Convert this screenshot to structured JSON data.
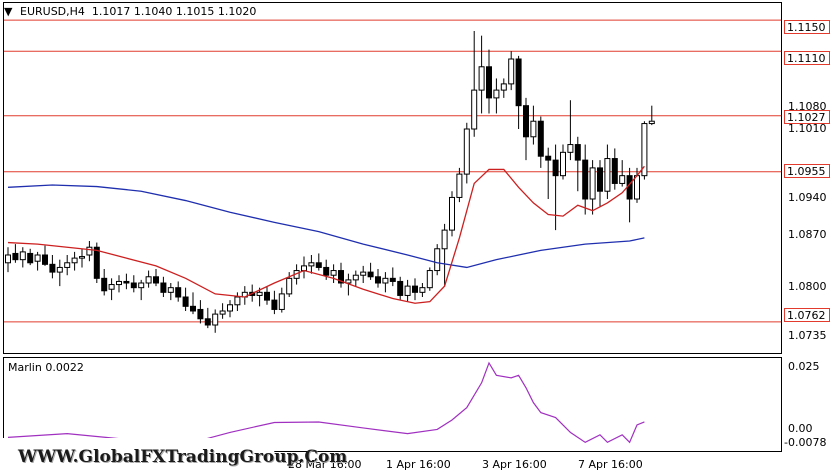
{
  "header": {
    "symbol_line": "EURUSD,H4  1.1017 1.1040 1.1015 1.1020",
    "indicator_line": "Marlin 0.0022"
  },
  "price_axis": [
    "1.1080",
    "1.1010",
    "1.0940",
    "1.0870",
    "1.0800",
    "1.0735"
  ],
  "levels": [
    {
      "value": "1.1150",
      "price": 1.115
    },
    {
      "value": "1.1110",
      "price": 1.111
    },
    {
      "value": "1.1027",
      "price": 1.1027
    },
    {
      "value": "1.0955",
      "price": 1.0955
    },
    {
      "value": "1.0762",
      "price": 1.0762
    }
  ],
  "indicator_axis": [
    "0.025",
    "0.00",
    "-0.0078"
  ],
  "time_axis": [
    "28 Mar 16:00",
    "1 Apr 16:00",
    "3 Apr 16:00",
    "7 Apr 16:00"
  ],
  "watermark": "WWW.GlobalFXTradingGroup.Com",
  "colors": {
    "level_line": "#e23b2e",
    "ma_blue": "#1f2fae",
    "envelope_red": "#cc2020",
    "marlin": "#a030c0",
    "bull": "#ffffff",
    "bear": "#000000"
  },
  "chart_data": {
    "type": "candlestick",
    "symbol": "EURUSD",
    "timeframe": "H4",
    "ohlc_last": {
      "open": 1.1017,
      "high": 1.104,
      "low": 1.1015,
      "close": 1.102
    },
    "ylim": [
      1.0722,
      1.1172
    ],
    "candles": [
      [
        1.0838,
        1.0858,
        1.0826,
        1.0848
      ],
      [
        1.085,
        1.0862,
        1.0838,
        1.0842
      ],
      [
        1.0842,
        1.0858,
        1.0832,
        1.0852
      ],
      [
        1.085,
        1.0856,
        1.0835,
        1.0838
      ],
      [
        1.084,
        1.0852,
        1.0828,
        1.0848
      ],
      [
        1.0848,
        1.086,
        1.0834,
        1.0836
      ],
      [
        1.0836,
        1.0848,
        1.0818,
        1.0826
      ],
      [
        1.0826,
        1.0842,
        1.0808,
        1.0832
      ],
      [
        1.0832,
        1.0848,
        1.0822,
        1.0838
      ],
      [
        1.0838,
        1.0852,
        1.0828,
        1.0844
      ],
      [
        1.0844,
        1.0856,
        1.0832,
        1.0846
      ],
      [
        1.0848,
        1.0866,
        1.084,
        1.0858
      ],
      [
        1.0858,
        1.0864,
        1.0812,
        1.0818
      ],
      [
        1.0818,
        1.083,
        1.0796,
        1.0802
      ],
      [
        1.0804,
        1.0818,
        1.079,
        1.081
      ],
      [
        1.081,
        1.0822,
        1.08,
        1.0814
      ],
      [
        1.0814,
        1.0824,
        1.0804,
        1.0812
      ],
      [
        1.0812,
        1.0822,
        1.08,
        1.0806
      ],
      [
        1.0806,
        1.0816,
        1.079,
        1.0812
      ],
      [
        1.0812,
        1.0828,
        1.0806,
        1.082
      ],
      [
        1.082,
        1.083,
        1.0808,
        1.0812
      ],
      [
        1.0812,
        1.082,
        1.0794,
        1.08
      ],
      [
        1.08,
        1.0812,
        1.079,
        1.0806
      ],
      [
        1.0806,
        1.0814,
        1.0788,
        1.0794
      ],
      [
        1.0794,
        1.0806,
        1.0776,
        1.0782
      ],
      [
        1.0782,
        1.08,
        1.0772,
        1.0776
      ],
      [
        1.0778,
        1.079,
        1.076,
        1.0766
      ],
      [
        1.0766,
        1.078,
        1.0754,
        1.0758
      ],
      [
        1.0758,
        1.0778,
        1.0748,
        1.0772
      ],
      [
        1.0772,
        1.0786,
        1.0766,
        1.0776
      ],
      [
        1.0776,
        1.079,
        1.0768,
        1.0784
      ],
      [
        1.0784,
        1.08,
        1.0776,
        1.0794
      ],
      [
        1.0794,
        1.0808,
        1.0784,
        1.08
      ],
      [
        1.08,
        1.081,
        1.0788,
        1.0796
      ],
      [
        1.0796,
        1.0806,
        1.0782,
        1.08
      ],
      [
        1.08,
        1.0808,
        1.0784,
        1.079
      ],
      [
        1.079,
        1.0802,
        1.0772,
        1.0778
      ],
      [
        1.0778,
        1.0806,
        1.0774,
        1.0798
      ],
      [
        1.0798,
        1.0826,
        1.0794,
        1.0818
      ],
      [
        1.0818,
        1.0836,
        1.081,
        1.0828
      ],
      [
        1.0828,
        1.0846,
        1.0818,
        1.0834
      ],
      [
        1.0834,
        1.0848,
        1.0824,
        1.0838
      ],
      [
        1.0838,
        1.085,
        1.0828,
        1.0832
      ],
      [
        1.0832,
        1.0842,
        1.0816,
        1.0822
      ],
      [
        1.0822,
        1.0836,
        1.0812,
        1.0828
      ],
      [
        1.0828,
        1.0838,
        1.0806,
        1.0812
      ],
      [
        1.0812,
        1.0824,
        1.0796,
        1.0816
      ],
      [
        1.0816,
        1.0828,
        1.0808,
        1.0822
      ],
      [
        1.0822,
        1.0834,
        1.0812,
        1.0826
      ],
      [
        1.0826,
        1.0838,
        1.0816,
        1.082
      ],
      [
        1.082,
        1.083,
        1.0806,
        1.0812
      ],
      [
        1.0812,
        1.0826,
        1.08,
        1.0818
      ],
      [
        1.0818,
        1.0832,
        1.0808,
        1.0814
      ],
      [
        1.0814,
        1.082,
        1.079,
        1.0796
      ],
      [
        1.0796,
        1.0816,
        1.0788,
        1.0808
      ],
      [
        1.0808,
        1.0818,
        1.079,
        1.08
      ],
      [
        1.08,
        1.0812,
        1.0794,
        1.0806
      ],
      [
        1.0806,
        1.0832,
        1.0802,
        1.0828
      ],
      [
        1.0828,
        1.0862,
        1.0822,
        1.0856
      ],
      [
        1.0856,
        1.0888,
        1.0808,
        1.088
      ],
      [
        1.088,
        1.093,
        1.0872,
        1.0922
      ],
      [
        1.0922,
        1.096,
        1.0916,
        1.0952
      ],
      [
        1.0952,
        1.1018,
        1.094,
        1.101
      ],
      [
        1.101,
        1.1136,
        1.1,
        1.106
      ],
      [
        1.106,
        1.113,
        1.103,
        1.109
      ],
      [
        1.109,
        1.1112,
        1.103,
        1.105
      ],
      [
        1.105,
        1.1075,
        1.103,
        1.106
      ],
      [
        1.106,
        1.1075,
        1.105,
        1.1068
      ],
      [
        1.1068,
        1.111,
        1.106,
        1.11
      ],
      [
        1.11,
        1.1104,
        1.101,
        1.104
      ],
      [
        1.104,
        1.105,
        1.097,
        1.1
      ],
      [
        1.1,
        1.104,
        1.099,
        1.102
      ],
      [
        1.102,
        1.1026,
        1.096,
        1.0975
      ],
      [
        1.0975,
        1.0986,
        1.092,
        1.097
      ],
      [
        1.097,
        1.099,
        1.088,
        1.095
      ],
      [
        1.095,
        1.099,
        1.0945,
        1.098
      ],
      [
        1.098,
        1.1047,
        1.097,
        1.099
      ],
      [
        1.099,
        1.1,
        1.093,
        1.097
      ],
      [
        1.097,
        1.099,
        1.09,
        1.092
      ],
      [
        1.092,
        1.097,
        1.09,
        1.096
      ],
      [
        1.096,
        1.097,
        1.091,
        1.093
      ],
      [
        1.093,
        1.099,
        1.092,
        1.0972
      ],
      [
        1.0972,
        1.0985,
        1.0932,
        1.094
      ],
      [
        1.094,
        1.097,
        1.0936,
        1.095
      ],
      [
        1.095,
        1.096,
        1.089,
        1.092
      ],
      [
        1.092,
        1.096,
        1.0915,
        1.095
      ],
      [
        1.095,
        1.102,
        1.0945,
        1.1017
      ],
      [
        1.1017,
        1.104,
        1.1015,
        1.102
      ]
    ],
    "moving_average_blue": [
      [
        0,
        1.0935
      ],
      [
        6,
        1.0938
      ],
      [
        12,
        1.0936
      ],
      [
        18,
        1.093
      ],
      [
        24,
        1.0918
      ],
      [
        30,
        1.0903
      ],
      [
        36,
        1.089
      ],
      [
        42,
        1.0878
      ],
      [
        48,
        1.0862
      ],
      [
        54,
        1.0848
      ],
      [
        58,
        1.0838
      ],
      [
        62,
        1.0832
      ],
      [
        66,
        1.0842
      ],
      [
        72,
        1.0854
      ],
      [
        78,
        1.0862
      ],
      [
        84,
        1.0866
      ],
      [
        86,
        1.087
      ]
    ],
    "envelope_red": [
      [
        0,
        1.0864
      ],
      [
        4,
        1.0862
      ],
      [
        8,
        1.0858
      ],
      [
        12,
        1.0854
      ],
      [
        16,
        1.0844
      ],
      [
        20,
        1.0834
      ],
      [
        24,
        1.0818
      ],
      [
        28,
        1.0798
      ],
      [
        32,
        1.0794
      ],
      [
        36,
        1.0812
      ],
      [
        40,
        1.0828
      ],
      [
        44,
        1.0818
      ],
      [
        48,
        1.0804
      ],
      [
        52,
        1.0792
      ],
      [
        55,
        1.0786
      ],
      [
        57,
        1.0788
      ],
      [
        59,
        1.0808
      ],
      [
        61,
        1.087
      ],
      [
        63,
        1.094
      ],
      [
        65,
        1.0958
      ],
      [
        67,
        1.0958
      ],
      [
        69,
        1.0935
      ],
      [
        71,
        1.0915
      ],
      [
        73,
        1.09
      ],
      [
        75,
        1.0898
      ],
      [
        77,
        1.0912
      ],
      [
        79,
        1.0905
      ],
      [
        81,
        1.0915
      ],
      [
        83,
        1.0928
      ],
      [
        85,
        1.095
      ],
      [
        86,
        1.0962
      ]
    ],
    "marlin": {
      "ylim": [
        -0.0095,
        0.028
      ],
      "points": [
        [
          0,
          -0.004
        ],
        [
          8,
          -0.0025
        ],
        [
          16,
          -0.0048
        ],
        [
          24,
          -0.0068
        ],
        [
          30,
          -0.002
        ],
        [
          36,
          0.002
        ],
        [
          42,
          0.0022
        ],
        [
          48,
          -0.0002
        ],
        [
          54,
          -0.0025
        ],
        [
          58,
          -0.0008
        ],
        [
          60,
          0.003
        ],
        [
          62,
          0.008
        ],
        [
          64,
          0.018
        ],
        [
          65,
          0.026
        ],
        [
          66,
          0.021
        ],
        [
          68,
          0.02
        ],
        [
          69,
          0.021
        ],
        [
          70,
          0.016
        ],
        [
          71,
          0.01
        ],
        [
          72,
          0.006
        ],
        [
          74,
          0.004
        ],
        [
          76,
          -0.002
        ],
        [
          78,
          -0.006
        ],
        [
          80,
          -0.003
        ],
        [
          81,
          -0.006
        ],
        [
          83,
          -0.003
        ],
        [
          84,
          -0.006
        ],
        [
          85,
          0.001
        ],
        [
          86,
          0.0022
        ]
      ]
    }
  }
}
